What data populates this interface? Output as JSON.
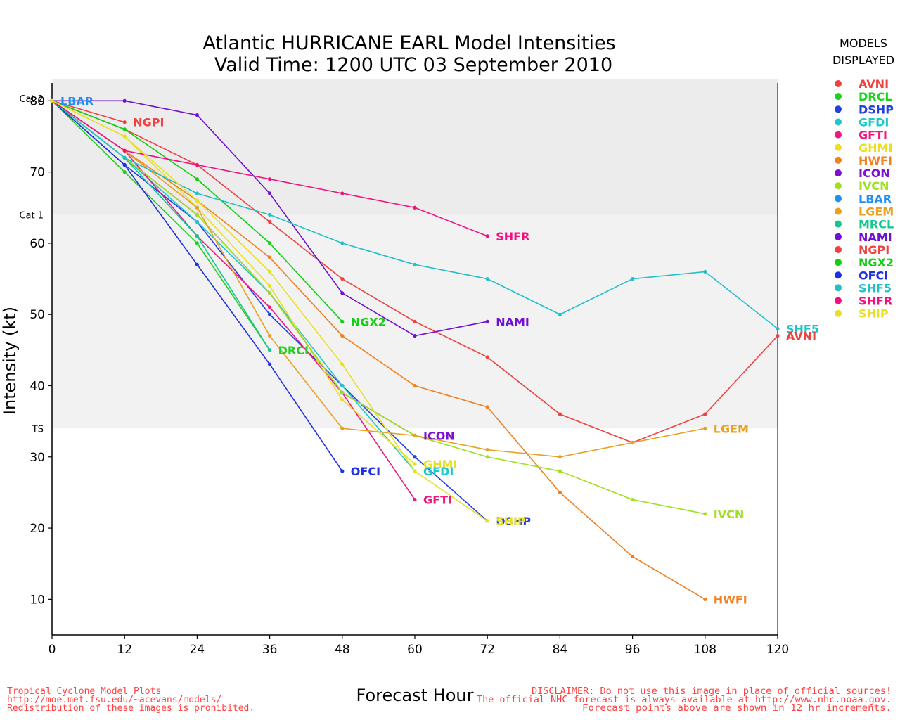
{
  "title_line1": "Atlantic HURRICANE EARL Model Intensities",
  "title_line2": "Valid Time: 1200 UTC 03 September 2010",
  "legend_title_line1": "MODELS",
  "legend_title_line2": "DISPLAYED",
  "footer_left": [
    "Tropical Cyclone Model Plots",
    "http://moe.met.fsu.edu/~acevans/models/",
    "Redistribution of these images is prohibited."
  ],
  "footer_right": [
    "DISCLAIMER: Do not use this image in place of official sources!",
    "The official NHC forecast is always available at http://www.nhc.noaa.gov.",
    "Forecast points above are shown in 12 hr increments."
  ],
  "colors": {
    "cat2_band": "#dcdcdc",
    "cat1_band": "#ececec",
    "ts_band": "#f2f2f2",
    "footer_text": "#ff4040"
  },
  "chart_data": {
    "type": "line",
    "xlabel": "Forecast Hour",
    "ylabel": "Intensity (kt)",
    "xlim": [
      0,
      120
    ],
    "ylim": [
      5,
      82.5
    ],
    "x_ticks": [
      0,
      12,
      24,
      36,
      48,
      60,
      72,
      84,
      96,
      108,
      120
    ],
    "y_ticks": [
      10,
      20,
      30,
      40,
      50,
      60,
      70,
      80
    ],
    "thresholds": [
      {
        "label": "TS",
        "value": 34
      },
      {
        "label": "Cat 1",
        "value": 64
      },
      {
        "label": "Cat 2",
        "value": 83
      }
    ],
    "series": [
      {
        "name": "AVNI",
        "color": "#f04040",
        "x": [
          0,
          12,
          24,
          36,
          48,
          60,
          72,
          84,
          96,
          108,
          120
        ],
        "values": [
          80,
          76,
          71,
          63,
          55,
          49,
          44,
          36,
          32,
          36,
          47
        ]
      },
      {
        "name": "DRCL",
        "color": "#20d020",
        "x": [
          0,
          12,
          24,
          36
        ],
        "values": [
          80,
          70,
          60,
          45
        ]
      },
      {
        "name": "DSHP",
        "color": "#2040e0",
        "x": [
          0,
          12,
          24,
          36,
          48,
          60,
          72
        ],
        "values": [
          80,
          71,
          63,
          50,
          40,
          30,
          21
        ]
      },
      {
        "name": "GFDI",
        "color": "#20c8c8",
        "x": [
          0,
          12,
          24,
          36,
          48,
          60
        ],
        "values": [
          80,
          72,
          63,
          53,
          40,
          28
        ]
      },
      {
        "name": "GFTI",
        "color": "#f01880",
        "x": [
          0,
          12,
          24,
          36,
          48,
          60
        ],
        "values": [
          80,
          73,
          61,
          51,
          39,
          24
        ]
      },
      {
        "name": "GHMI",
        "color": "#e8e020",
        "x": [
          0,
          12,
          24,
          36,
          48,
          60
        ],
        "values": [
          80,
          75,
          65,
          54,
          38,
          29
        ]
      },
      {
        "name": "HWFI",
        "color": "#f08020",
        "x": [
          0,
          12,
          24,
          36,
          48,
          60,
          72,
          84,
          96,
          108
        ],
        "values": [
          80,
          73,
          66,
          58,
          47,
          40,
          37,
          25,
          16,
          10
        ]
      },
      {
        "name": "ICON",
        "color": "#8010d0",
        "x": [
          0,
          12,
          24,
          36,
          48,
          60
        ],
        "values": [
          80,
          72,
          64,
          53,
          39,
          33
        ]
      },
      {
        "name": "IVCN",
        "color": "#a0e020",
        "x": [
          0,
          12,
          24,
          36,
          48,
          60,
          72,
          84,
          96,
          108
        ],
        "values": [
          80,
          72,
          64,
          53,
          39,
          33,
          30,
          28,
          24,
          22
        ]
      },
      {
        "name": "LBAR",
        "color": "#2090f0",
        "x": [
          0
        ],
        "values": [
          80
        ]
      },
      {
        "name": "LGEM",
        "color": "#e8a020",
        "x": [
          0,
          12,
          24,
          36,
          48,
          60,
          72,
          84,
          96,
          108
        ],
        "values": [
          80,
          73,
          65,
          47,
          34,
          33,
          31,
          30,
          32,
          34
        ]
      },
      {
        "name": "MRCL",
        "color": "#10c890",
        "x": [
          0,
          12,
          24,
          36
        ],
        "values": [
          80,
          72,
          61,
          45
        ]
      },
      {
        "name": "NAMI",
        "color": "#7010d0",
        "x": [
          0,
          12,
          24,
          36,
          48,
          60,
          72
        ],
        "values": [
          80,
          80,
          78,
          67,
          53,
          47,
          49
        ]
      },
      {
        "name": "NGPI",
        "color": "#f04040",
        "x": [
          0,
          12
        ],
        "values": [
          80,
          77
        ]
      },
      {
        "name": "NGX2",
        "color": "#10d010",
        "x": [
          0,
          12,
          24,
          36,
          48
        ],
        "values": [
          80,
          76,
          69,
          60,
          49
        ]
      },
      {
        "name": "OFCI",
        "color": "#2030e0",
        "x": [
          0,
          12,
          24,
          36,
          48
        ],
        "values": [
          80,
          71,
          57,
          43,
          28
        ]
      },
      {
        "name": "SHF5",
        "color": "#20c0c8",
        "x": [
          0,
          12,
          24,
          36,
          48,
          60,
          72,
          84,
          96,
          108,
          120
        ],
        "values": [
          80,
          72,
          67,
          64,
          60,
          57,
          55,
          50,
          55,
          56,
          48
        ]
      },
      {
        "name": "SHFR",
        "color": "#f01080",
        "x": [
          0,
          12,
          24,
          36,
          48,
          60,
          72
        ],
        "values": [
          80,
          73,
          71,
          69,
          67,
          65,
          61
        ]
      },
      {
        "name": "SHIP",
        "color": "#e8e020",
        "x": [
          0,
          12,
          24,
          36,
          48,
          60,
          72
        ],
        "values": [
          80,
          75,
          66,
          56,
          43,
          28,
          21
        ]
      }
    ],
    "end_labels": [
      {
        "name": "LBAR",
        "x": 0,
        "y": 80
      },
      {
        "name": "NGPI",
        "x": 12,
        "y": 77
      },
      {
        "name": "DRCL",
        "x": 36,
        "y": 45
      },
      {
        "name": "NGX2",
        "x": 48,
        "y": 49
      },
      {
        "name": "OFCI",
        "x": 48,
        "y": 28
      },
      {
        "name": "ICON",
        "x": 60,
        "y": 33
      },
      {
        "name": "GHMI",
        "x": 60,
        "y": 29
      },
      {
        "name": "GFDI",
        "x": 60,
        "y": 28
      },
      {
        "name": "GFTI",
        "x": 60,
        "y": 24
      },
      {
        "name": "SHFR",
        "x": 72,
        "y": 61
      },
      {
        "name": "NAMI",
        "x": 72,
        "y": 49
      },
      {
        "name": "DSHP",
        "x": 72,
        "y": 21
      },
      {
        "name": "SHIP",
        "x": 72,
        "y": 21
      },
      {
        "name": "LGEM",
        "x": 108,
        "y": 34
      },
      {
        "name": "IVCN",
        "x": 108,
        "y": 22
      },
      {
        "name": "HWFI",
        "x": 108,
        "y": 10
      },
      {
        "name": "SHF5",
        "x": 120,
        "y": 48
      },
      {
        "name": "AVNI",
        "x": 120,
        "y": 47
      }
    ],
    "legend": [
      {
        "name": "AVNI",
        "color": "#f04040"
      },
      {
        "name": "DRCL",
        "color": "#20d020"
      },
      {
        "name": "DSHP",
        "color": "#2040e0"
      },
      {
        "name": "GFDI",
        "color": "#20c8c8"
      },
      {
        "name": "GFTI",
        "color": "#f01880"
      },
      {
        "name": "GHMI",
        "color": "#e8e020"
      },
      {
        "name": "HWFI",
        "color": "#f08020"
      },
      {
        "name": "ICON",
        "color": "#8010d0"
      },
      {
        "name": "IVCN",
        "color": "#a0e020"
      },
      {
        "name": "LBAR",
        "color": "#2090f0"
      },
      {
        "name": "LGEM",
        "color": "#e8a020"
      },
      {
        "name": "MRCL",
        "color": "#10c890"
      },
      {
        "name": "NAMI",
        "color": "#7010d0"
      },
      {
        "name": "NGPI",
        "color": "#f04040"
      },
      {
        "name": "NGX2",
        "color": "#10d010"
      },
      {
        "name": "OFCI",
        "color": "#2030e0"
      },
      {
        "name": "SHF5",
        "color": "#20c0c8"
      },
      {
        "name": "SHFR",
        "color": "#f01080"
      },
      {
        "name": "SHIP",
        "color": "#e8e020"
      }
    ]
  }
}
